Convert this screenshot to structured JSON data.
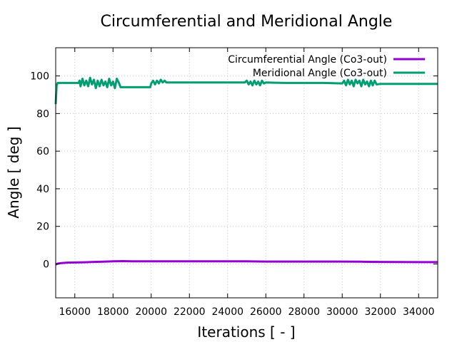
{
  "chart_data": {
    "type": "line",
    "title": "Circumferential and Meridional Angle",
    "xlabel": "Iterations [ - ]",
    "ylabel": "Angle [ deg ]",
    "xlim": [
      15000,
      35000
    ],
    "ylim": [
      -18,
      115
    ],
    "xticks": [
      16000,
      18000,
      20000,
      22000,
      24000,
      26000,
      28000,
      30000,
      32000,
      34000
    ],
    "yticks": [
      0,
      20,
      40,
      60,
      80,
      100
    ],
    "grid": true,
    "legend_position": "top-right",
    "series": [
      {
        "name": "Circumferential Angle (Co3-out)",
        "color": "#9400d3",
        "x": [
          15000,
          15100,
          15300,
          15600,
          16000,
          16500,
          17000,
          17500,
          18000,
          18500,
          19000,
          20000,
          21000,
          22000,
          24000,
          25000,
          26000,
          28000,
          30000,
          31000,
          32000,
          34000,
          35000
        ],
        "y": [
          -0.3,
          0.2,
          0.5,
          0.7,
          0.8,
          0.9,
          1.1,
          1.2,
          1.4,
          1.5,
          1.4,
          1.4,
          1.4,
          1.4,
          1.4,
          1.4,
          1.3,
          1.3,
          1.3,
          1.2,
          1.1,
          1.0,
          1.0
        ]
      },
      {
        "name": "Meridional Angle (Co3-out)",
        "color": "#009e73",
        "x": [
          15000,
          15050,
          15100,
          15150,
          16200,
          16250,
          16300,
          16400,
          16500,
          16600,
          16700,
          16800,
          16900,
          17000,
          17100,
          17200,
          17300,
          17400,
          17500,
          17600,
          17700,
          17800,
          17900,
          18000,
          18100,
          18200,
          18300,
          18400,
          18450,
          19000,
          19500,
          19950,
          20000,
          20100,
          20200,
          20300,
          20400,
          20500,
          20600,
          20700,
          20800,
          20900,
          21000,
          22000,
          23000,
          24000,
          24900,
          25000,
          25100,
          25200,
          25300,
          25400,
          25500,
          25600,
          25700,
          25800,
          25900,
          26000,
          27000,
          28000,
          29000,
          30000,
          30100,
          30200,
          30300,
          30400,
          30500,
          30600,
          30700,
          30800,
          30900,
          31000,
          31100,
          31200,
          31300,
          31400,
          31500,
          31600,
          31700,
          31800,
          32000,
          33000,
          34000,
          35000
        ],
        "y": [
          85,
          95,
          96.3,
          96.3,
          96.3,
          97.5,
          94.5,
          98.5,
          95,
          97.5,
          94.5,
          99,
          95.5,
          98,
          93.5,
          97.5,
          94.5,
          98,
          95,
          97,
          94,
          98.5,
          95,
          97,
          93.5,
          98.5,
          96.5,
          94,
          94,
          94,
          94,
          94,
          96,
          97.5,
          95.5,
          97.5,
          96,
          98,
          96.5,
          97.5,
          96.5,
          96.5,
          96.5,
          96.5,
          96.5,
          96.5,
          96.5,
          97.5,
          95.5,
          97,
          95,
          97.5,
          95.5,
          97,
          95,
          97.5,
          96,
          96.5,
          96.3,
          96.3,
          96.3,
          96,
          97.5,
          95,
          98,
          95.5,
          97.5,
          94.5,
          98,
          96,
          97.5,
          94.5,
          98,
          95.5,
          97,
          94.5,
          97.5,
          95,
          97.5,
          95.5,
          95.8,
          95.8,
          95.8,
          95.8
        ]
      }
    ]
  }
}
